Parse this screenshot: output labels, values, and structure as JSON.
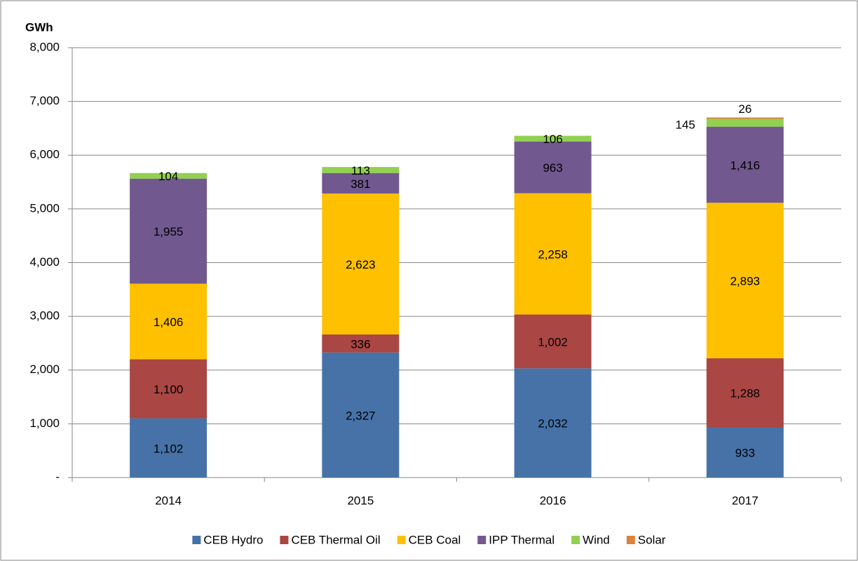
{
  "chart_data": {
    "type": "stacked-bar",
    "y_label": "GWh",
    "categories": [
      "2014",
      "2015",
      "2016",
      "2017"
    ],
    "series": [
      {
        "name": "CEB Hydro",
        "color": "#4672a8",
        "values": [
          1102,
          2327,
          2032,
          933
        ],
        "value_labels": [
          "1,102",
          "2,327",
          "2,032",
          "933"
        ]
      },
      {
        "name": "CEB Thermal Oil",
        "color": "#aa4643",
        "values": [
          1100,
          336,
          1002,
          1288
        ],
        "value_labels": [
          "1,100",
          "336",
          "1,002",
          "1,288"
        ]
      },
      {
        "name": "CEB Coal",
        "color": "#ffc000",
        "values": [
          1406,
          2623,
          2258,
          2893
        ],
        "value_labels": [
          "1,406",
          "2,623",
          "2,258",
          "2,893"
        ]
      },
      {
        "name": "IPP Thermal",
        "color": "#71588f",
        "values": [
          1955,
          381,
          963,
          1416
        ],
        "value_labels": [
          "1,955",
          "381",
          "963",
          "1,416"
        ]
      },
      {
        "name": "Wind",
        "color": "#92d050",
        "values": [
          104,
          113,
          106,
          145
        ]
      },
      {
        "name": "Solar",
        "color": "#db843d",
        "values": [
          null,
          null,
          null,
          26
        ]
      }
    ],
    "ylim": [
      0,
      8000
    ],
    "yticks": [
      {
        "value": 0,
        "label": "-"
      },
      {
        "value": 1000,
        "label": "1,000"
      },
      {
        "value": 2000,
        "label": "2,000"
      },
      {
        "value": 3000,
        "label": "3,000"
      },
      {
        "value": 4000,
        "label": "4,000"
      },
      {
        "value": 5000,
        "label": "5,000"
      },
      {
        "value": 6000,
        "label": "6,000"
      },
      {
        "value": 7000,
        "label": "7,000"
      },
      {
        "value": 8000,
        "label": "8,000"
      }
    ],
    "grid": true
  }
}
